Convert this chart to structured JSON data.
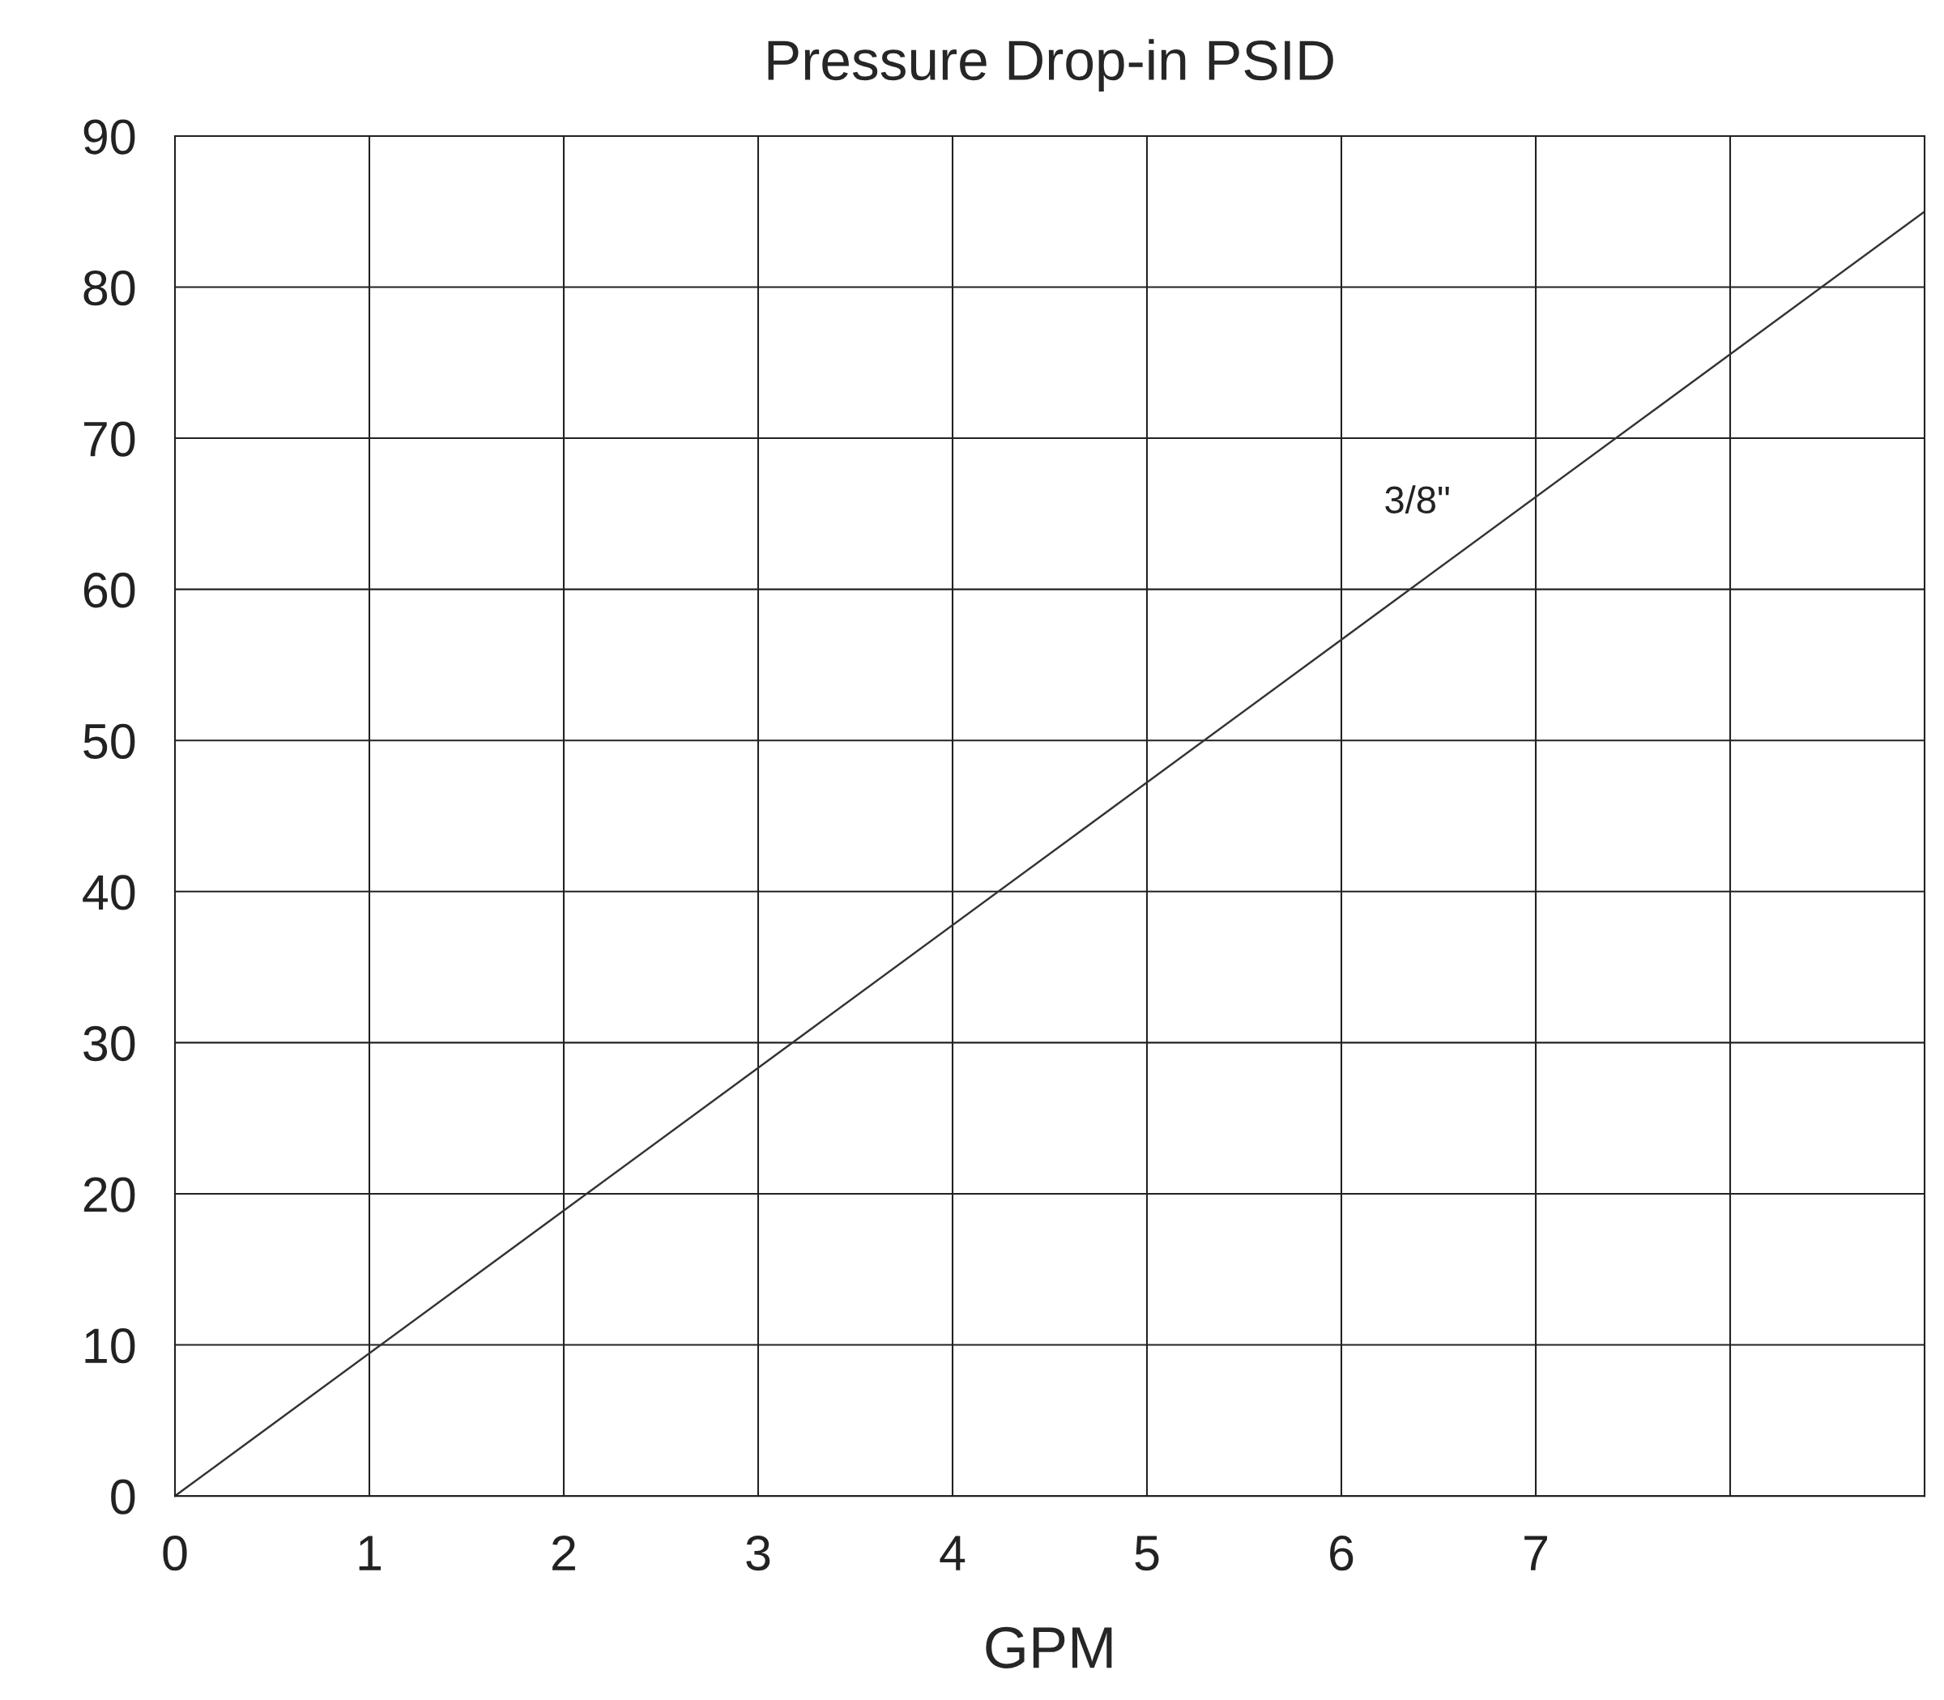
{
  "chart_data": {
    "type": "line",
    "title": "Pressure Drop-in PSID",
    "xlabel": "GPM",
    "x": [
      0,
      9
    ],
    "series": [
      {
        "color": "#333333",
        "values": [
          0,
          85
        ]
      }
    ],
    "xlim": [
      0,
      9
    ],
    "ylim": [
      0,
      90
    ],
    "xticks": [
      0,
      1,
      2,
      3,
      4,
      5,
      6,
      7,
      {
        "value": 8,
        "label": null
      }
    ],
    "yticks": [
      0,
      10,
      20,
      30,
      40,
      50,
      60,
      70,
      80,
      90
    ],
    "annotations": [
      "3/8\""
    ],
    "grid": true,
    "marker": "none",
    "line_style": "solid"
  }
}
